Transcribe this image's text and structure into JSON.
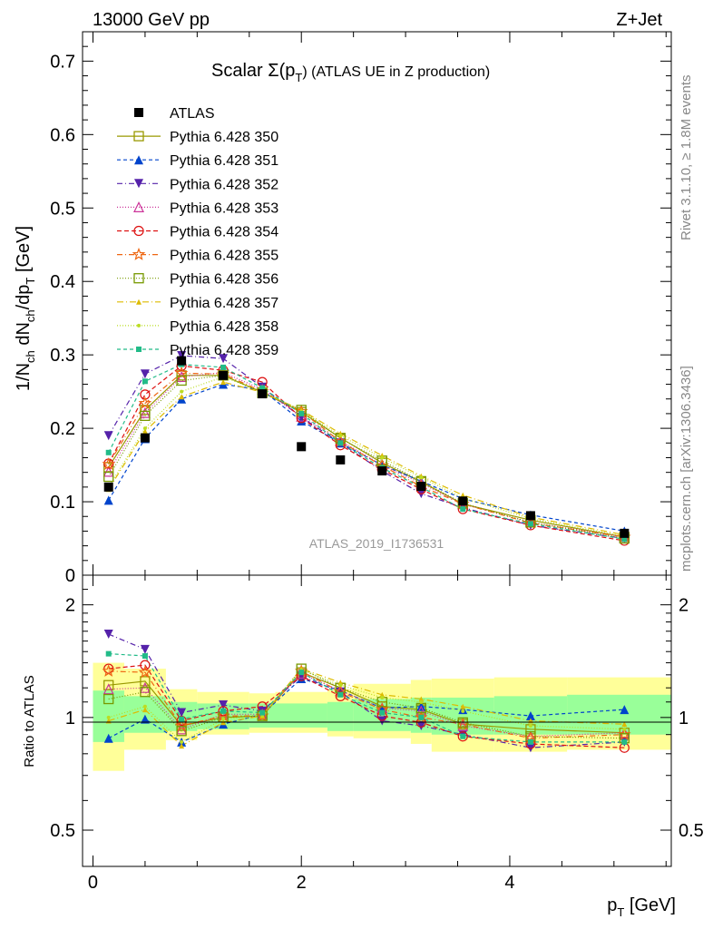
{
  "header": {
    "left": "13000 GeV pp",
    "right": "Z+Jet"
  },
  "side_texts": {
    "rivet": "Rivet 3.1.10, ≥ 1.8M events",
    "mcplots": "mcplots.cern.ch [arXiv:1306.3436]"
  },
  "analysis_id": "ATLAS_2019_I1736531",
  "chart_data": [
    {
      "type": "scatter",
      "title": "Scalar Σ(p_T) (ATLAS UE in Z production)",
      "title_main": "Scalar Σ(p",
      "title_sub": "T",
      "title_end": ") (ATLAS UE in Z production)",
      "ylabel": "1/N_ch dN_ch/dp_T [GeV]",
      "xlim": [
        -0.1,
        5.55
      ],
      "ylim": [
        0,
        0.74
      ],
      "y_ticks": [
        "0",
        "0.1",
        "0.2",
        "0.3",
        "0.4",
        "0.5",
        "0.6",
        "0.7"
      ],
      "x": [
        0.15,
        0.5,
        0.85,
        1.25,
        1.625,
        2.0,
        2.375,
        2.775,
        3.15,
        3.55,
        4.2,
        5.1
      ],
      "series": [
        {
          "name": "ATLAS",
          "color": "#000000",
          "marker": "square-filled",
          "dash": "none",
          "values": [
            0.12,
            0.187,
            0.292,
            0.272,
            0.247,
            0.175,
            0.157,
            0.142,
            0.121,
            0.101,
            0.081,
            0.057
          ]
        },
        {
          "name": "Pythia 6.428 350",
          "color": "#999900",
          "marker": "square-open",
          "dash": "",
          "values": [
            0.147,
            0.225,
            0.272,
            0.272,
            0.249,
            0.222,
            0.187,
            0.153,
            0.127,
            0.097,
            0.075,
            0.052
          ]
        },
        {
          "name": "Pythia 6.428 351",
          "color": "#0044cc",
          "marker": "triangle-up-filled",
          "dash": "4,3",
          "values": [
            0.102,
            0.186,
            0.24,
            0.26,
            0.252,
            0.21,
            0.18,
            0.15,
            0.128,
            0.104,
            0.082,
            0.06
          ]
        },
        {
          "name": "Pythia 6.428 352",
          "color": "#5522aa",
          "marker": "triangle-down-filled",
          "dash": "6,3,1,3",
          "values": [
            0.19,
            0.274,
            0.299,
            0.295,
            0.256,
            0.215,
            0.18,
            0.142,
            0.111,
            0.092,
            0.068,
            0.05
          ]
        },
        {
          "name": "Pythia 6.428 353",
          "color": "#cc3399",
          "marker": "triangle-up-open",
          "dash": "1,2",
          "values": [
            0.141,
            0.221,
            0.27,
            0.276,
            0.253,
            0.216,
            0.183,
            0.15,
            0.125,
            0.097,
            0.072,
            0.052
          ]
        },
        {
          "name": "Pythia 6.428 354",
          "color": "#dd1111",
          "marker": "circle-open",
          "dash": "5,3",
          "values": [
            0.152,
            0.246,
            0.285,
            0.279,
            0.263,
            0.214,
            0.177,
            0.144,
            0.117,
            0.09,
            0.068,
            0.047
          ]
        },
        {
          "name": "Pythia 6.428 355",
          "color": "#ee6611",
          "marker": "star-open",
          "dash": "6,3,1,3",
          "values": [
            0.151,
            0.234,
            0.275,
            0.274,
            0.25,
            0.223,
            0.182,
            0.149,
            0.121,
            0.097,
            0.071,
            0.052
          ]
        },
        {
          "name": "Pythia 6.428 356",
          "color": "#779900",
          "marker": "square-open",
          "dash": "1,2",
          "values": [
            0.134,
            0.217,
            0.265,
            0.272,
            0.248,
            0.225,
            0.186,
            0.156,
            0.128,
            0.098,
            0.072,
            0.05
          ]
        },
        {
          "name": "Pythia 6.428 357",
          "color": "#ddbb00",
          "marker": "triangle-up-filled-small",
          "dash": "7,3,1,3",
          "values": [
            0.117,
            0.196,
            0.243,
            0.263,
            0.249,
            0.225,
            0.193,
            0.163,
            0.135,
            0.109,
            0.079,
            0.055
          ]
        },
        {
          "name": "Pythia 6.428 358",
          "color": "#bbdd22",
          "marker": "dot",
          "dash": "1,2",
          "values": [
            0.12,
            0.2,
            0.25,
            0.27,
            0.25,
            0.223,
            0.19,
            0.16,
            0.133,
            0.105,
            0.077,
            0.053
          ]
        },
        {
          "name": "Pythia 6.428 359",
          "color": "#22bb88",
          "marker": "square-filled-small",
          "dash": "4,3",
          "values": [
            0.167,
            0.264,
            0.287,
            0.283,
            0.255,
            0.22,
            0.18,
            0.146,
            0.12,
            0.09,
            0.07,
            0.049
          ]
        }
      ],
      "legend_position": "top-left"
    },
    {
      "type": "line",
      "ylabel": "Ratio to ATLAS",
      "xlabel": "p_T [GeV]",
      "xlabel_main": "p",
      "xlabel_sub": "T",
      "xlabel_end": " [GeV]",
      "xlim": [
        -0.1,
        5.55
      ],
      "ylim": [
        0.4,
        2.4
      ],
      "log_y": true,
      "y_ticks": [
        "0.5",
        "1",
        "2"
      ],
      "x_ticks": [
        "0",
        "2",
        "4"
      ],
      "x_edges": [
        0.0,
        0.3,
        0.7,
        1.0,
        1.5,
        1.75,
        2.25,
        2.5,
        3.05,
        3.25,
        3.85,
        4.55,
        5.55
      ],
      "band_green": [
        [
          0.86,
          1.18
        ],
        [
          0.91,
          1.14
        ],
        [
          0.92,
          1.1
        ],
        [
          0.93,
          1.09
        ],
        [
          0.94,
          1.09
        ],
        [
          0.94,
          1.09
        ],
        [
          0.92,
          1.1
        ],
        [
          0.92,
          1.12
        ],
        [
          0.91,
          1.13
        ],
        [
          0.9,
          1.13
        ],
        [
          0.9,
          1.14
        ],
        [
          0.9,
          1.15
        ]
      ],
      "band_yellow": [
        [
          0.72,
          1.4
        ],
        [
          0.82,
          1.35
        ],
        [
          0.87,
          1.19
        ],
        [
          0.9,
          1.17
        ],
        [
          0.91,
          1.16
        ],
        [
          0.91,
          1.17
        ],
        [
          0.89,
          1.19
        ],
        [
          0.88,
          1.23
        ],
        [
          0.85,
          1.26
        ],
        [
          0.81,
          1.27
        ],
        [
          0.81,
          1.28
        ],
        [
          0.82,
          1.28
        ]
      ],
      "ratios": {
        "Pythia 6.428 350": [
          1.22,
          1.25,
          0.95,
          1.0,
          1.01,
          1.32,
          1.2,
          1.07,
          1.05,
          0.96,
          0.93,
          0.91
        ],
        "Pythia 6.428 351": [
          0.88,
          0.99,
          0.86,
          0.96,
          1.02,
          1.27,
          1.18,
          1.06,
          1.07,
          1.05,
          1.01,
          1.05
        ],
        "Pythia 6.428 352": [
          1.67,
          1.52,
          1.03,
          1.08,
          1.04,
          1.29,
          1.17,
          0.98,
          0.95,
          0.9,
          0.83,
          0.86
        ],
        "Pythia 6.428 353": [
          1.19,
          1.2,
          0.93,
          1.02,
          1.02,
          1.31,
          1.18,
          1.06,
          1.04,
          0.95,
          0.89,
          0.91
        ],
        "Pythia 6.428 354": [
          1.35,
          1.38,
          0.98,
          1.04,
          1.07,
          1.29,
          1.14,
          1.01,
          0.97,
          0.89,
          0.85,
          0.83
        ],
        "Pythia 6.428 355": [
          1.33,
          1.32,
          0.95,
          1.01,
          1.01,
          1.33,
          1.17,
          1.05,
          1.0,
          0.96,
          0.88,
          0.9
        ],
        "Pythia 6.428 356": [
          1.12,
          1.17,
          0.92,
          1.0,
          1.01,
          1.35,
          1.2,
          1.1,
          1.06,
          0.97,
          0.89,
          0.88
        ],
        "Pythia 6.428 357": [
          0.98,
          1.05,
          0.84,
          0.97,
          1.01,
          1.35,
          1.24,
          1.15,
          1.12,
          1.07,
          0.98,
          0.96
        ],
        "Pythia 6.428 358": [
          1.0,
          1.07,
          0.86,
          0.99,
          1.01,
          1.34,
          1.22,
          1.13,
          1.1,
          1.04,
          0.95,
          0.93
        ],
        "Pythia 6.428 359": [
          1.48,
          1.46,
          0.99,
          1.04,
          1.03,
          1.32,
          1.15,
          1.03,
          1.0,
          0.89,
          0.86,
          0.86
        ]
      }
    }
  ]
}
